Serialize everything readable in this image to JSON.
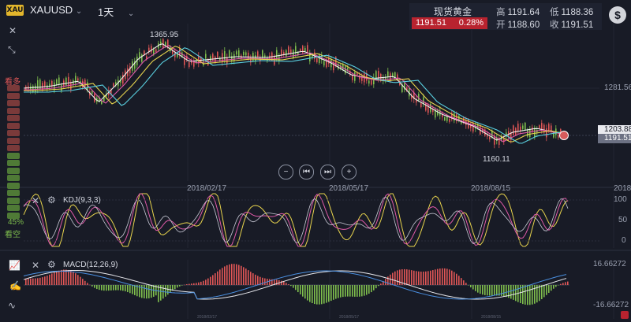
{
  "header": {
    "logo_text": "XAU",
    "symbol": "XAUUSD",
    "period": "1天"
  },
  "quote": {
    "name": "现货黄金",
    "price": "1191.51",
    "change": "0.28%",
    "high_label": "高",
    "high": "1191.64",
    "low_label": "低",
    "low": "1188.36",
    "open_label": "开",
    "open": "1188.60",
    "close_label": "收",
    "close": "1191.51",
    "dollar_icon": "$"
  },
  "main_chart": {
    "annotations": {
      "high": "1365.95",
      "low": "1160.11"
    },
    "price_labels": {
      "level": "1281.56",
      "cursor": "1203.88",
      "last": "1191.51"
    },
    "dates": [
      "2018/02/17",
      "2018/05/17",
      "2018/08/15",
      "2018/"
    ],
    "bull_label": "看多",
    "bear_label": "看空",
    "sentiment_pct": "45%"
  },
  "kdj": {
    "title": "KDJ(9,3,3)",
    "ticks": [
      "100",
      "50",
      "0"
    ]
  },
  "macd": {
    "title": "MACD(12,26,9)",
    "ticks": [
      "16.66272",
      "-16.66272"
    ],
    "mini_dates": [
      "2018/02/17",
      "2018/05/17",
      "2018/08/15"
    ]
  },
  "colors": {
    "up": "#e05656",
    "down": "#7fbf4d",
    "accent": "#b8232f",
    "line_cyan": "#5ad0e0",
    "line_pink": "#e05aa8",
    "line_yellow": "#e8d44d"
  }
}
